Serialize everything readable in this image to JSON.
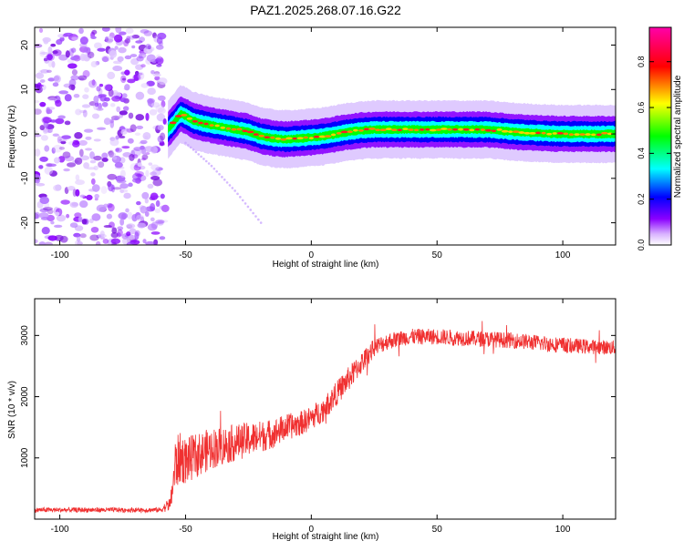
{
  "chart_data": [
    {
      "type": "heatmap",
      "title": "PAZ1.2025.268.07.16.G22",
      "xlabel": "Height of straight line (km)",
      "ylabel": "Frequency (Hz)",
      "xlim": [
        -110,
        121
      ],
      "ylim": [
        -25,
        24
      ],
      "xticks": [
        -100,
        -50,
        0,
        50,
        100
      ],
      "yticks": [
        -20,
        -10,
        0,
        10,
        20
      ],
      "colorbar": {
        "label": "Normalized spectral amplitude",
        "range": [
          0,
          0.95
        ],
        "ticks": [
          0.0,
          0.2,
          0.4,
          0.6,
          0.8
        ],
        "tick_labels": [
          "0.0",
          "0.2",
          "0.4",
          "0.6",
          "0.8"
        ],
        "colors": [
          "#ffffff",
          "#8a00ff",
          "#0000ff",
          "#00ffff",
          "#00ff00",
          "#ffff00",
          "#ff0000",
          "#ff00aa"
        ]
      },
      "noise_region_x": [
        -110,
        -58
      ],
      "ridge": {
        "x": [
          -57,
          -54,
          -52,
          -50,
          -47,
          -44,
          -40,
          -35,
          -30,
          -25,
          -20,
          -15,
          -10,
          -5,
          0,
          5,
          10,
          15,
          20,
          25,
          30,
          40,
          50,
          60,
          70,
          80,
          90,
          100,
          110,
          121
        ],
        "y": [
          1,
          3,
          4.5,
          4,
          3,
          2.5,
          2,
          1.5,
          1,
          0.5,
          -0.5,
          -1,
          -1.2,
          -1,
          -0.8,
          -0.5,
          0,
          0.5,
          0.8,
          1,
          1,
          1,
          1,
          1,
          1,
          0.5,
          0.2,
          0,
          0,
          0
        ]
      },
      "secondary_trace": {
        "x": [
          -50,
          -40,
          -30,
          -20
        ],
        "y": [
          -2,
          -7,
          -13,
          -20
        ]
      }
    },
    {
      "type": "line",
      "xlabel": "Height of straight line (km)",
      "ylabel": "SNR (10 * v/v)",
      "xlim": [
        -110,
        121
      ],
      "ylim": [
        0,
        3600
      ],
      "xticks": [
        -100,
        -50,
        0,
        50,
        100
      ],
      "yticks": [
        1000,
        2000,
        3000
      ],
      "series": [
        {
          "name": "SNR",
          "color": "#f03030",
          "x": [
            -110,
            -100,
            -90,
            -80,
            -70,
            -60,
            -56,
            -54,
            -52,
            -50,
            -45,
            -40,
            -35,
            -30,
            -25,
            -20,
            -15,
            -10,
            -5,
            0,
            5,
            10,
            15,
            20,
            25,
            30,
            35,
            40,
            45,
            50,
            55,
            60,
            65,
            70,
            75,
            80,
            85,
            90,
            95,
            100,
            105,
            110,
            115,
            121
          ],
          "values": [
            150,
            150,
            150,
            150,
            150,
            150,
            250,
            900,
            1000,
            950,
            1050,
            1150,
            1200,
            1250,
            1300,
            1350,
            1400,
            1500,
            1550,
            1650,
            1800,
            2050,
            2300,
            2550,
            2800,
            2900,
            2950,
            2980,
            2980,
            2980,
            2970,
            2960,
            2950,
            2940,
            2930,
            2920,
            2900,
            2880,
            2860,
            2840,
            2830,
            2820,
            2810,
            2800
          ],
          "noise_amplitude": [
            40,
            40,
            40,
            40,
            40,
            40,
            120,
            450,
            420,
            380,
            360,
            340,
            320,
            300,
            280,
            260,
            240,
            220,
            200,
            200,
            200,
            200,
            200,
            180,
            150,
            140,
            130,
            130,
            130,
            130,
            130,
            130,
            130,
            130,
            130,
            130,
            130,
            130,
            130,
            130,
            120,
            120,
            120,
            120
          ]
        }
      ]
    }
  ]
}
